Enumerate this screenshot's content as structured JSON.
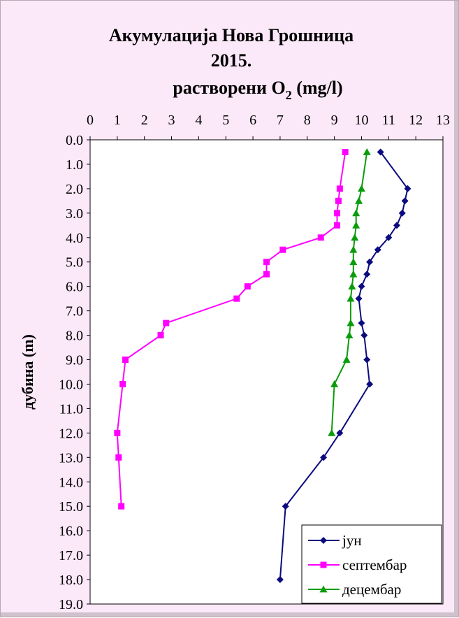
{
  "chart_data": {
    "type": "line",
    "title": [
      "Акумулација Нова Грошница",
      "2015.",
      "растворени O"
    ],
    "title_subscript": "2",
    "title_suffix": " (mg/l)",
    "ylabel": "дубина (m)",
    "xlabel": "",
    "xlim": [
      0,
      13
    ],
    "ylim": [
      0,
      19
    ],
    "y_reversed": true,
    "x_axis_position": "top",
    "x_ticks": [
      "0",
      "1",
      "2",
      "3",
      "4",
      "5",
      "6",
      "7",
      "8",
      "9",
      "10",
      "11",
      "12",
      "13"
    ],
    "y_ticks": [
      "0.0",
      "1.0",
      "2.0",
      "3.0",
      "4.0",
      "5.0",
      "6.0",
      "7.0",
      "8.0",
      "9.0",
      "10.0",
      "11.0",
      "12.0",
      "13.0",
      "14.0",
      "15.0",
      "16.0",
      "17.0",
      "18.0",
      "19.0"
    ],
    "grid": false,
    "legend_position": "bottom-right",
    "series": [
      {
        "name": "јун",
        "color": "#0b0b7f",
        "marker": "diamond",
        "points": [
          {
            "x": 10.7,
            "y": 0.5
          },
          {
            "x": 11.7,
            "y": 2.0
          },
          {
            "x": 11.6,
            "y": 2.5
          },
          {
            "x": 11.5,
            "y": 3.0
          },
          {
            "x": 11.3,
            "y": 3.5
          },
          {
            "x": 11.0,
            "y": 4.0
          },
          {
            "x": 10.6,
            "y": 4.5
          },
          {
            "x": 10.3,
            "y": 5.0
          },
          {
            "x": 10.2,
            "y": 5.5
          },
          {
            "x": 10.0,
            "y": 6.0
          },
          {
            "x": 9.9,
            "y": 6.5
          },
          {
            "x": 10.0,
            "y": 7.5
          },
          {
            "x": 10.1,
            "y": 8.0
          },
          {
            "x": 10.2,
            "y": 9.0
          },
          {
            "x": 10.3,
            "y": 10.0
          },
          {
            "x": 9.2,
            "y": 12.0
          },
          {
            "x": 8.6,
            "y": 13.0
          },
          {
            "x": 7.2,
            "y": 15.0
          },
          {
            "x": 7.0,
            "y": 18.0
          }
        ]
      },
      {
        "name": "септембар",
        "color": "#ff00ff",
        "marker": "square",
        "points": [
          {
            "x": 9.4,
            "y": 0.5
          },
          {
            "x": 9.2,
            "y": 2.0
          },
          {
            "x": 9.15,
            "y": 2.5
          },
          {
            "x": 9.1,
            "y": 3.0
          },
          {
            "x": 9.1,
            "y": 3.5
          },
          {
            "x": 8.5,
            "y": 4.0
          },
          {
            "x": 7.1,
            "y": 4.5
          },
          {
            "x": 6.5,
            "y": 5.0
          },
          {
            "x": 6.5,
            "y": 5.5
          },
          {
            "x": 5.8,
            "y": 6.0
          },
          {
            "x": 5.4,
            "y": 6.5
          },
          {
            "x": 2.8,
            "y": 7.5
          },
          {
            "x": 2.6,
            "y": 8.0
          },
          {
            "x": 1.3,
            "y": 9.0
          },
          {
            "x": 1.2,
            "y": 10.0
          },
          {
            "x": 1.0,
            "y": 12.0
          },
          {
            "x": 1.05,
            "y": 13.0
          },
          {
            "x": 1.15,
            "y": 15.0
          }
        ]
      },
      {
        "name": "децембар",
        "color": "#0a9c0a",
        "marker": "triangle",
        "points": [
          {
            "x": 10.2,
            "y": 0.5
          },
          {
            "x": 10.0,
            "y": 2.0
          },
          {
            "x": 9.9,
            "y": 2.5
          },
          {
            "x": 9.8,
            "y": 3.0
          },
          {
            "x": 9.8,
            "y": 3.5
          },
          {
            "x": 9.75,
            "y": 4.0
          },
          {
            "x": 9.7,
            "y": 4.5
          },
          {
            "x": 9.7,
            "y": 5.0
          },
          {
            "x": 9.7,
            "y": 5.5
          },
          {
            "x": 9.65,
            "y": 6.0
          },
          {
            "x": 9.6,
            "y": 6.5
          },
          {
            "x": 9.6,
            "y": 7.5
          },
          {
            "x": 9.55,
            "y": 8.0
          },
          {
            "x": 9.45,
            "y": 9.0
          },
          {
            "x": 9.0,
            "y": 10.0
          },
          {
            "x": 8.9,
            "y": 12.0
          }
        ]
      }
    ]
  }
}
